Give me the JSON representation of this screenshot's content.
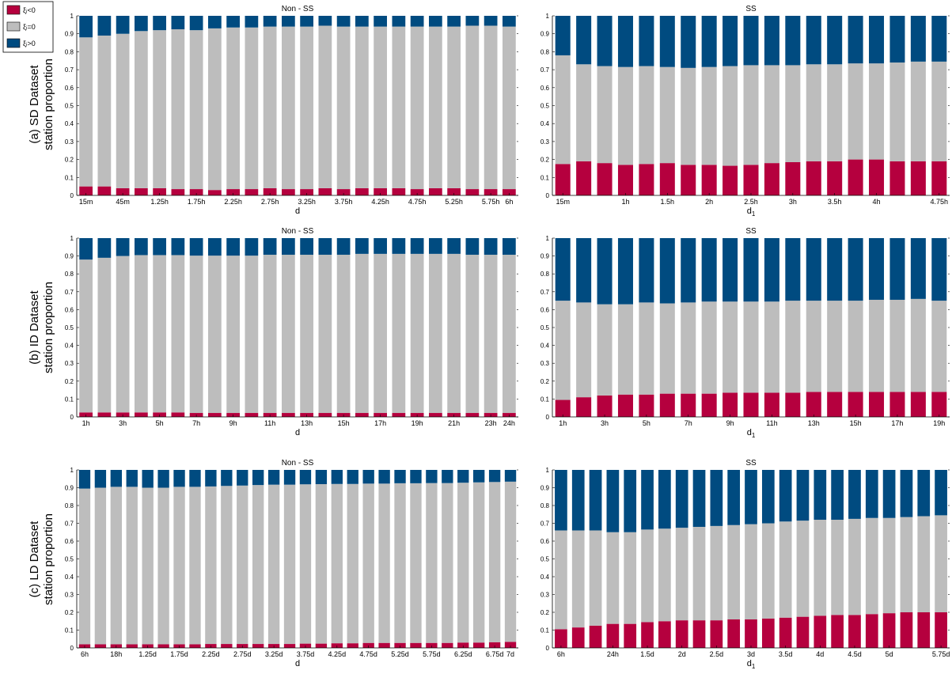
{
  "legend": {
    "position": "top-left",
    "entries": [
      {
        "label": "ξᵢ<0",
        "color": "#b5003e"
      },
      {
        "label": "ξᵢ=0",
        "color": "#bdbdbd"
      },
      {
        "label": "ξᵢ>0",
        "color": "#004b80"
      }
    ]
  },
  "row_labels": [
    {
      "line1": "(a) SD Dataset",
      "line2": "station proportion"
    },
    {
      "line1": "(b) ID Dataset",
      "line2": "station proportion"
    },
    {
      "line1": "(c) LD Dataset",
      "line2": "station proportion"
    }
  ],
  "chart_data": [
    {
      "type": "bar",
      "stacked": true,
      "title": "Non - SS",
      "xlabel": "d",
      "ylabel": "",
      "ylim": [
        0,
        1
      ],
      "yticks": [
        "0",
        "0.1",
        "0.2",
        "0.3",
        "0.4",
        "0.5",
        "0.6",
        "0.7",
        "0.8",
        "0.9",
        "1"
      ],
      "xtick_labels": [
        "15m",
        "45m",
        "1.25h",
        "1.75h",
        "2.25h",
        "2.75h",
        "3.25h",
        "3.75h",
        "4.25h",
        "4.75h",
        "5.25h",
        "5.75h",
        "6h"
      ],
      "xtick_positions": [
        1,
        3,
        5,
        7,
        9,
        11,
        13,
        15,
        17,
        19,
        21,
        23,
        24
      ],
      "series": [
        {
          "name": "ξᵢ<0",
          "values": [
            0.05,
            0.05,
            0.04,
            0.04,
            0.04,
            0.035,
            0.035,
            0.03,
            0.035,
            0.035,
            0.04,
            0.035,
            0.035,
            0.04,
            0.035,
            0.04,
            0.04,
            0.04,
            0.035,
            0.04,
            0.04,
            0.035,
            0.035,
            0.035
          ]
        },
        {
          "name": "ξᵢ=0",
          "values": [
            0.83,
            0.84,
            0.86,
            0.875,
            0.88,
            0.89,
            0.885,
            0.9,
            0.9,
            0.9,
            0.9,
            0.905,
            0.905,
            0.905,
            0.905,
            0.9,
            0.9,
            0.9,
            0.905,
            0.9,
            0.9,
            0.91,
            0.91,
            0.905
          ]
        },
        {
          "name": "ξᵢ>0",
          "values": [
            0.12,
            0.11,
            0.1,
            0.085,
            0.08,
            0.075,
            0.08,
            0.07,
            0.065,
            0.065,
            0.06,
            0.06,
            0.06,
            0.055,
            0.06,
            0.06,
            0.06,
            0.06,
            0.06,
            0.06,
            0.06,
            0.055,
            0.055,
            0.06
          ]
        }
      ]
    },
    {
      "type": "bar",
      "stacked": true,
      "title": "SS",
      "xlabel": "d",
      "xlabel_sub": "1",
      "ylabel": "",
      "ylim": [
        0,
        1
      ],
      "yticks": [
        "0",
        "0.1",
        "0.2",
        "0.3",
        "0.4",
        "0.5",
        "0.6",
        "0.7",
        "0.8",
        "0.9",
        "1"
      ],
      "xtick_labels": [
        "15m",
        "1h",
        "1.5h",
        "2h",
        "2.5h",
        "3h",
        "3.5h",
        "4h",
        "4.75h"
      ],
      "xtick_positions": [
        1,
        4,
        6,
        8,
        10,
        12,
        14,
        16,
        19
      ],
      "series": [
        {
          "name": "ξᵢ<0",
          "values": [
            0.175,
            0.19,
            0.18,
            0.17,
            0.175,
            0.18,
            0.17,
            0.17,
            0.165,
            0.17,
            0.18,
            0.185,
            0.19,
            0.19,
            0.2,
            0.2,
            0.19,
            0.19,
            0.19
          ]
        },
        {
          "name": "ξᵢ=0",
          "values": [
            0.605,
            0.54,
            0.54,
            0.545,
            0.545,
            0.535,
            0.54,
            0.545,
            0.555,
            0.555,
            0.545,
            0.54,
            0.54,
            0.54,
            0.535,
            0.535,
            0.55,
            0.555,
            0.555
          ]
        },
        {
          "name": "ξᵢ>0",
          "values": [
            0.22,
            0.27,
            0.28,
            0.285,
            0.28,
            0.285,
            0.29,
            0.285,
            0.28,
            0.275,
            0.275,
            0.275,
            0.27,
            0.27,
            0.265,
            0.265,
            0.26,
            0.255,
            0.255
          ]
        }
      ]
    },
    {
      "type": "bar",
      "stacked": true,
      "title": "Non - SS",
      "xlabel": "d",
      "ylabel": "",
      "ylim": [
        0,
        1
      ],
      "yticks": [
        "0",
        "0.1",
        "0.2",
        "0.3",
        "0.4",
        "0.5",
        "0.6",
        "0.7",
        "0.8",
        "0.9",
        "1"
      ],
      "xtick_labels": [
        "1h",
        "3h",
        "5h",
        "7h",
        "9h",
        "11h",
        "13h",
        "15h",
        "17h",
        "19h",
        "21h",
        "23h",
        "24h"
      ],
      "xtick_positions": [
        1,
        3,
        5,
        7,
        9,
        11,
        13,
        15,
        17,
        19,
        21,
        23,
        24
      ],
      "series": [
        {
          "name": "ξᵢ<0",
          "values": [
            0.025,
            0.025,
            0.025,
            0.025,
            0.025,
            0.025,
            0.022,
            0.022,
            0.022,
            0.022,
            0.022,
            0.022,
            0.022,
            0.022,
            0.022,
            0.022,
            0.022,
            0.022,
            0.022,
            0.022,
            0.022,
            0.022,
            0.022,
            0.022
          ]
        },
        {
          "name": "ξᵢ=0",
          "values": [
            0.855,
            0.865,
            0.875,
            0.88,
            0.88,
            0.88,
            0.88,
            0.88,
            0.88,
            0.88,
            0.885,
            0.885,
            0.885,
            0.885,
            0.885,
            0.89,
            0.89,
            0.89,
            0.89,
            0.89,
            0.89,
            0.885,
            0.885,
            0.885
          ]
        },
        {
          "name": "ξᵢ>0",
          "values": [
            0.12,
            0.11,
            0.1,
            0.095,
            0.095,
            0.095,
            0.098,
            0.098,
            0.098,
            0.098,
            0.093,
            0.093,
            0.093,
            0.093,
            0.093,
            0.088,
            0.088,
            0.088,
            0.088,
            0.088,
            0.088,
            0.093,
            0.093,
            0.093
          ]
        }
      ]
    },
    {
      "type": "bar",
      "stacked": true,
      "title": "SS",
      "xlabel": "d",
      "xlabel_sub": "1",
      "ylabel": "",
      "ylim": [
        0,
        1
      ],
      "yticks": [
        "0",
        "0.1",
        "0.2",
        "0.3",
        "0.4",
        "0.5",
        "0.6",
        "0.7",
        "0.8",
        "0.9",
        "1"
      ],
      "xtick_labels": [
        "1h",
        "3h",
        "5h",
        "7h",
        "9h",
        "11h",
        "13h",
        "15h",
        "17h",
        "19h"
      ],
      "xtick_positions": [
        1,
        3,
        5,
        7,
        9,
        11,
        13,
        15,
        17,
        19
      ],
      "series": [
        {
          "name": "ξᵢ<0",
          "values": [
            0.095,
            0.11,
            0.12,
            0.125,
            0.125,
            0.13,
            0.13,
            0.13,
            0.135,
            0.135,
            0.135,
            0.135,
            0.14,
            0.14,
            0.14,
            0.14,
            0.14,
            0.14,
            0.14
          ]
        },
        {
          "name": "ξᵢ=0",
          "values": [
            0.555,
            0.53,
            0.51,
            0.505,
            0.515,
            0.505,
            0.51,
            0.515,
            0.51,
            0.51,
            0.51,
            0.515,
            0.51,
            0.51,
            0.51,
            0.515,
            0.515,
            0.52,
            0.51
          ]
        },
        {
          "name": "ξᵢ>0",
          "values": [
            0.35,
            0.36,
            0.37,
            0.37,
            0.36,
            0.365,
            0.36,
            0.355,
            0.355,
            0.355,
            0.355,
            0.35,
            0.35,
            0.35,
            0.35,
            0.345,
            0.345,
            0.34,
            0.35
          ]
        }
      ]
    },
    {
      "type": "bar",
      "stacked": true,
      "title": "Non - SS",
      "xlabel": "d",
      "ylabel": "",
      "ylim": [
        0,
        1
      ],
      "yticks": [
        "0",
        "0.1",
        "0.2",
        "0.3",
        "0.4",
        "0.5",
        "0.6",
        "0.7",
        "0.8",
        "0.9",
        "1"
      ],
      "xtick_labels": [
        "6h",
        "18h",
        "1.25d",
        "1.75d",
        "2.25d",
        "2.75d",
        "3.25d",
        "3.75d",
        "4.25d",
        "4.75d",
        "5.25d",
        "5.75d",
        "6.25d",
        "6.75d",
        "7d"
      ],
      "xtick_positions": [
        1,
        3,
        5,
        7,
        9,
        11,
        13,
        15,
        17,
        19,
        21,
        23,
        25,
        27,
        28
      ],
      "series": [
        {
          "name": "ξᵢ<0",
          "values": [
            0.02,
            0.02,
            0.02,
            0.02,
            0.02,
            0.02,
            0.02,
            0.02,
            0.022,
            0.022,
            0.022,
            0.022,
            0.022,
            0.022,
            0.024,
            0.024,
            0.026,
            0.026,
            0.028,
            0.028,
            0.028,
            0.028,
            0.028,
            0.028,
            0.03,
            0.03,
            0.032,
            0.034
          ]
        },
        {
          "name": "ξᵢ=0",
          "values": [
            0.875,
            0.88,
            0.885,
            0.885,
            0.88,
            0.88,
            0.885,
            0.885,
            0.885,
            0.888,
            0.89,
            0.893,
            0.895,
            0.895,
            0.895,
            0.896,
            0.895,
            0.895,
            0.895,
            0.895,
            0.897,
            0.897,
            0.898,
            0.898,
            0.898,
            0.9,
            0.9,
            0.9
          ]
        },
        {
          "name": "ξᵢ>0",
          "values": [
            0.105,
            0.1,
            0.095,
            0.095,
            0.1,
            0.1,
            0.095,
            0.095,
            0.093,
            0.09,
            0.088,
            0.085,
            0.083,
            0.083,
            0.081,
            0.08,
            0.079,
            0.079,
            0.077,
            0.077,
            0.075,
            0.075,
            0.074,
            0.074,
            0.072,
            0.07,
            0.068,
            0.066
          ]
        }
      ]
    },
    {
      "type": "bar",
      "stacked": true,
      "title": "SS",
      "xlabel": "d",
      "xlabel_sub": "1",
      "ylabel": "",
      "ylim": [
        0,
        1
      ],
      "yticks": [
        "0",
        "0.1",
        "0.2",
        "0.3",
        "0.4",
        "0.5",
        "0.6",
        "0.7",
        "0.8",
        "0.9",
        "1"
      ],
      "xtick_labels": [
        "6h",
        "24h",
        "1.5d",
        "2d",
        "2.5d",
        "3d",
        "3.5d",
        "4d",
        "4.5d",
        "5d",
        "5.75d"
      ],
      "xtick_positions": [
        1,
        4,
        6,
        8,
        10,
        12,
        14,
        16,
        18,
        20,
        23
      ],
      "series": [
        {
          "name": "ξᵢ<0",
          "values": [
            0.105,
            0.115,
            0.125,
            0.135,
            0.135,
            0.145,
            0.15,
            0.155,
            0.155,
            0.155,
            0.16,
            0.16,
            0.165,
            0.17,
            0.175,
            0.18,
            0.185,
            0.185,
            0.19,
            0.195,
            0.2,
            0.2,
            0.2
          ]
        },
        {
          "name": "ξᵢ=0",
          "values": [
            0.555,
            0.545,
            0.535,
            0.515,
            0.515,
            0.52,
            0.52,
            0.52,
            0.525,
            0.53,
            0.53,
            0.535,
            0.535,
            0.54,
            0.54,
            0.54,
            0.535,
            0.54,
            0.54,
            0.535,
            0.535,
            0.54,
            0.545
          ]
        },
        {
          "name": "ξᵢ>0",
          "values": [
            0.34,
            0.34,
            0.34,
            0.35,
            0.35,
            0.335,
            0.33,
            0.325,
            0.32,
            0.315,
            0.31,
            0.305,
            0.3,
            0.29,
            0.285,
            0.28,
            0.28,
            0.275,
            0.27,
            0.27,
            0.265,
            0.26,
            0.255
          ]
        }
      ]
    }
  ]
}
